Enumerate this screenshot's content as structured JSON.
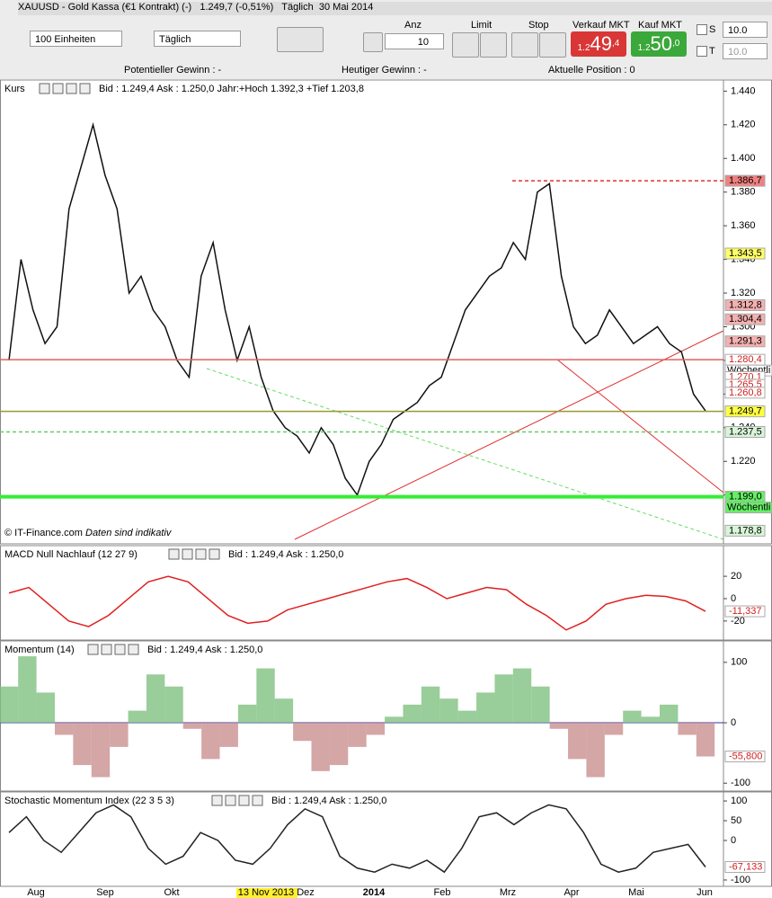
{
  "header": {
    "title": "XAUUSD - Gold Kassa (€1 Kontrakt) (-)",
    "price": "1.249,7 (-0,51%)",
    "interval": "Täglich",
    "date": "30 Mai 2014"
  },
  "toolbar": {
    "units": "100 Einheiten",
    "period": "Täglich",
    "anz_label": "Anz",
    "anz": "10",
    "limit": "Limit",
    "stop": "Stop",
    "sell_label": "Verkauf MKT",
    "sell_pre": "1.2",
    "sell_main": "49",
    "sell_sup": ",4",
    "buy_label": "Kauf MKT",
    "buy_pre": "1.2",
    "buy_main": "50",
    "buy_sup": ",0",
    "s_label": "S",
    "s_value": "10.0",
    "t_label": "T",
    "t_value": "10.0"
  },
  "status": [
    "Potentieller Gewinn : -",
    "Heutiger Gewinn : -",
    "Aktuelle Position : 0"
  ],
  "time_axis": [
    "Aug",
    "Sep",
    "Okt",
    "13 Nov 2013",
    "Dez",
    "2014",
    "Feb",
    "Mrz",
    "Apr",
    "Mai",
    "Jun"
  ],
  "chart_data": [
    {
      "type": "line",
      "title": "Kurs",
      "subtitle": "Bid : 1.249,4 Ask : 1.250,0 Jahr:+Hoch 1.392,3 +Tief 1.203,8",
      "note": "© IT-Finance.com",
      "note2": "Daten sind indikativ",
      "color": "#111111",
      "values": [
        1280,
        1340,
        1310,
        1290,
        1300,
        1370,
        1395,
        1420,
        1390,
        1370,
        1320,
        1330,
        1310,
        1300,
        1280,
        1270,
        1330,
        1350,
        1310,
        1280,
        1300,
        1270,
        1250,
        1240,
        1235,
        1225,
        1240,
        1230,
        1210,
        1200,
        1220,
        1230,
        1245,
        1250,
        1255,
        1265,
        1270,
        1290,
        1310,
        1320,
        1330,
        1335,
        1350,
        1340,
        1380,
        1385,
        1330,
        1300,
        1290,
        1295,
        1310,
        1300,
        1290,
        1295,
        1300,
        1290,
        1285,
        1260,
        1250
      ],
      "ylim": [
        1171,
        1445
      ],
      "yticks": [
        {
          "value": 1440,
          "label": "1.440"
        },
        {
          "value": 1420,
          "label": "1.420"
        },
        {
          "value": 1400,
          "label": "1.400"
        },
        {
          "value": 1380,
          "label": "1.380"
        },
        {
          "value": 1360,
          "label": "1.360"
        },
        {
          "value": 1340,
          "label": "1.340"
        },
        {
          "value": 1320,
          "label": "1.320"
        },
        {
          "value": 1300,
          "label": "1.300"
        },
        {
          "value": 1280,
          "label": "1.280"
        },
        {
          "value": 1260,
          "label": "1.260"
        },
        {
          "value": 1240,
          "label": "1.240"
        },
        {
          "value": 1220,
          "label": "1.220"
        },
        {
          "value": 1200,
          "label": "1.200"
        }
      ],
      "price_labels": [
        {
          "value": 1386.7,
          "label": "1.386,7",
          "color": "#f08080",
          "line": "#e03030"
        },
        {
          "value": 1343.5,
          "label": "1.343,5",
          "color": "#ffff66"
        },
        {
          "value": 1312.8,
          "label": "1.312,8",
          "color": "#f4b0b0"
        },
        {
          "value": 1304.4,
          "label": "1.304,4",
          "color": "#f4b0b0"
        },
        {
          "value": 1291.3,
          "label": "1.291,3",
          "color": "#f4b0b0"
        },
        {
          "value": 1280.4,
          "label": "1.280,4",
          "note": "Wöchentli",
          "color": "#ffffff",
          "line": "#e06060"
        },
        {
          "value": 1270.1,
          "label": "1.270,1",
          "color": "#ffffff"
        },
        {
          "value": 1265.5,
          "label": "1.265,5",
          "color": "#ffffff"
        },
        {
          "value": 1260.8,
          "label": "1.260,8",
          "color": "#ffffff"
        },
        {
          "value": 1249.7,
          "label": "1.249,7",
          "color": "#ffff44",
          "line": "#999933"
        },
        {
          "value": 1237.5,
          "label": "1.237,5",
          "color": "#d8f5d8",
          "line": "#66cc66"
        },
        {
          "value": 1199.0,
          "label": "1.199,0",
          "note": "Wöchentli",
          "color": "#66ee66",
          "line": "#33ee33"
        },
        {
          "value": 1178.8,
          "label": "1.178,8",
          "color": "#d8f5d8"
        }
      ]
    },
    {
      "type": "line",
      "title": "MACD Null Nachlauf (12 27 9)",
      "subtitle": "Bid : 1.249,4 Ask : 1.250,0",
      "color": "#e02020",
      "values": [
        5,
        10,
        -5,
        -20,
        -25,
        -15,
        0,
        15,
        20,
        15,
        0,
        -15,
        -22,
        -20,
        -10,
        -5,
        0,
        5,
        10,
        15,
        18,
        10,
        0,
        5,
        10,
        8,
        -5,
        -15,
        -28,
        -20,
        -5,
        0,
        3,
        2,
        -2,
        -11.337
      ],
      "ylim": [
        -37,
        45
      ],
      "yticks": [
        20,
        0,
        -20
      ],
      "price_labels": [
        {
          "value": -11.337,
          "label": "-11,337",
          "color": "#ffffff"
        }
      ]
    },
    {
      "type": "bar",
      "title": "Momentum (14)",
      "subtitle": "Bid : 1.249,4 Ask : 1.250,0",
      "color": "#7fc07f",
      "color_negative": "#c99090",
      "values": [
        60,
        110,
        50,
        -20,
        -70,
        -90,
        -40,
        20,
        80,
        60,
        -10,
        -60,
        -40,
        30,
        90,
        40,
        -30,
        -80,
        -70,
        -40,
        -20,
        10,
        30,
        60,
        40,
        20,
        50,
        80,
        90,
        60,
        -10,
        -60,
        -90,
        -20,
        20,
        10,
        30,
        -20,
        -55.8
      ],
      "ylim": [
        -113,
        131
      ],
      "yticks": [
        100,
        0,
        -100
      ],
      "price_labels": [
        {
          "value": -55.8,
          "label": "-55,800",
          "color": "#ffffff"
        }
      ]
    },
    {
      "type": "line",
      "title": "Stochastic Momentum Index (22 3 5 3)",
      "subtitle": "Bid : 1.249,4 Ask : 1.250,0",
      "color": "#222222",
      "values": [
        20,
        60,
        0,
        -30,
        20,
        70,
        90,
        60,
        -20,
        -60,
        -40,
        20,
        0,
        -50,
        -60,
        -20,
        40,
        80,
        60,
        -40,
        -70,
        -80,
        -60,
        -70,
        -50,
        -80,
        -20,
        60,
        70,
        40,
        70,
        90,
        80,
        20,
        -60,
        -80,
        -70,
        -30,
        -20,
        -10,
        -67.133
      ],
      "ylim": [
        -116,
        116
      ],
      "yticks": [
        100,
        50,
        0,
        -100
      ],
      "price_labels": [
        {
          "value": -67.133,
          "label": "-67,133",
          "color": "#ffffff"
        }
      ]
    }
  ]
}
